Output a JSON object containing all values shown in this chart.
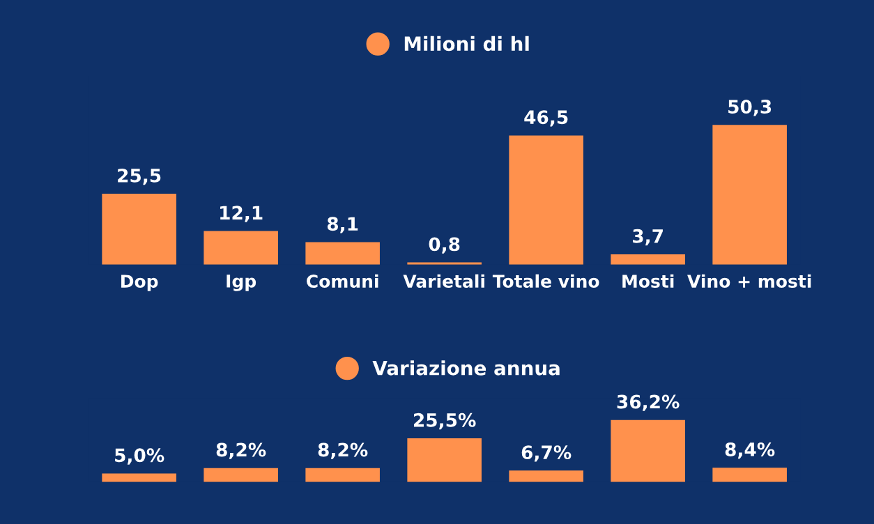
{
  "chart_data": [
    {
      "type": "bar",
      "categories": [
        "Dop",
        "Igp",
        "Comuni",
        "Varietali",
        "Totale vino",
        "Mosti",
        "Vino + mosti"
      ],
      "series": [
        {
          "name": "Milioni di hl",
          "color": "#ff914d",
          "values": [
            25.5,
            12.1,
            8.1,
            0.8,
            46.5,
            3.7,
            50.3
          ],
          "value_labels": [
            "25,5",
            "12,1",
            "8,1",
            "0,8",
            "46,5",
            "3,7",
            "50,3"
          ]
        }
      ],
      "legend": "top",
      "tick_labels": "x"
    },
    {
      "type": "bar",
      "categories": [
        null,
        null,
        null,
        null,
        null,
        null,
        null
      ],
      "series": [
        {
          "name": "Variazione annua",
          "color": "#ff914d",
          "values": [
            5.0,
            8.2,
            8.2,
            25.5,
            6.7,
            36.2,
            8.4
          ],
          "value_labels": [
            "5,0%",
            "8,2%",
            "8,2%",
            "25,5%",
            "6,7%",
            "36,2%",
            "8,4%"
          ]
        }
      ],
      "legend": "top",
      "tick_labels": false
    }
  ]
}
